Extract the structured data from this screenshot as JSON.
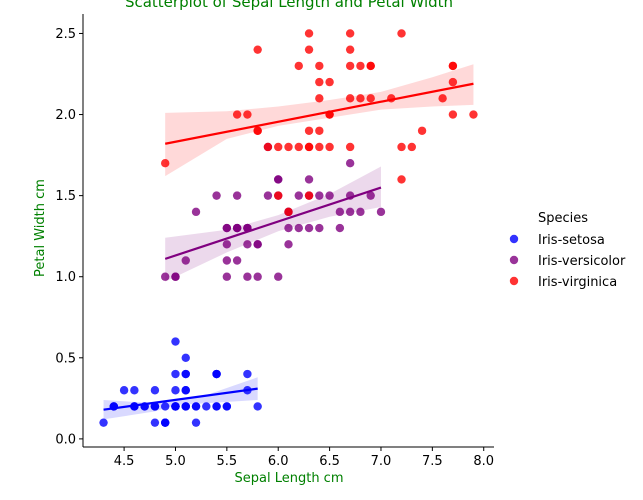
{
  "chart_data": {
    "type": "scatter",
    "title": "Scatterplot of Sepal Length and Petal Width",
    "xlabel": "Sepal Length cm",
    "ylabel": "Petal Width cm",
    "label_color": "#008000",
    "xlim": [
      4.1,
      8.1
    ],
    "ylim": [
      -0.05,
      2.62
    ],
    "xticks": [
      "4.5",
      "5.0",
      "5.5",
      "6.0",
      "6.5",
      "7.0",
      "7.5",
      "8.0"
    ],
    "yticks": [
      "0.0",
      "0.5",
      "1.0",
      "1.5",
      "2.0",
      "2.5"
    ],
    "grid": false,
    "legend_position": "right",
    "legend_title": "Species",
    "series": [
      {
        "name": "Iris-setosa",
        "color": "#0000ff",
        "regression": [
          [
            4.3,
            0.18
          ],
          [
            5.8,
            0.31
          ]
        ],
        "ci_upper": [
          [
            4.3,
            0.24
          ],
          [
            4.8,
            0.22
          ],
          [
            5.0,
            0.24
          ],
          [
            5.3,
            0.27
          ],
          [
            5.8,
            0.38
          ]
        ],
        "ci_lower": [
          [
            5.8,
            0.24
          ],
          [
            5.3,
            0.22
          ],
          [
            5.0,
            0.21
          ],
          [
            4.8,
            0.17
          ],
          [
            4.3,
            0.12
          ]
        ],
        "points": [
          [
            5.1,
            0.2
          ],
          [
            4.9,
            0.2
          ],
          [
            4.7,
            0.2
          ],
          [
            4.6,
            0.2
          ],
          [
            5.0,
            0.2
          ],
          [
            5.4,
            0.4
          ],
          [
            4.6,
            0.3
          ],
          [
            5.0,
            0.2
          ],
          [
            4.4,
            0.2
          ],
          [
            4.9,
            0.1
          ],
          [
            5.4,
            0.2
          ],
          [
            4.8,
            0.2
          ],
          [
            4.8,
            0.1
          ],
          [
            4.3,
            0.1
          ],
          [
            5.8,
            0.2
          ],
          [
            5.7,
            0.4
          ],
          [
            5.4,
            0.4
          ],
          [
            5.1,
            0.3
          ],
          [
            5.7,
            0.3
          ],
          [
            5.1,
            0.3
          ],
          [
            5.4,
            0.2
          ],
          [
            5.1,
            0.4
          ],
          [
            4.6,
            0.2
          ],
          [
            5.1,
            0.5
          ],
          [
            4.8,
            0.2
          ],
          [
            5.0,
            0.2
          ],
          [
            5.0,
            0.4
          ],
          [
            5.2,
            0.2
          ],
          [
            5.2,
            0.2
          ],
          [
            4.7,
            0.2
          ],
          [
            4.8,
            0.2
          ],
          [
            5.4,
            0.4
          ],
          [
            5.2,
            0.1
          ],
          [
            5.5,
            0.2
          ],
          [
            4.9,
            0.1
          ],
          [
            5.0,
            0.2
          ],
          [
            5.5,
            0.2
          ],
          [
            4.9,
            0.1
          ],
          [
            4.4,
            0.2
          ],
          [
            5.1,
            0.2
          ],
          [
            5.0,
            0.3
          ],
          [
            4.5,
            0.3
          ],
          [
            4.4,
            0.2
          ],
          [
            5.0,
            0.6
          ],
          [
            5.1,
            0.4
          ],
          [
            4.8,
            0.3
          ],
          [
            5.1,
            0.2
          ],
          [
            4.6,
            0.2
          ],
          [
            5.3,
            0.2
          ],
          [
            5.0,
            0.2
          ]
        ]
      },
      {
        "name": "Iris-versicolor",
        "color": "#800080",
        "regression": [
          [
            4.9,
            1.11
          ],
          [
            7.0,
            1.55
          ]
        ],
        "ci_upper": [
          [
            4.9,
            1.24
          ],
          [
            5.5,
            1.29
          ],
          [
            6.0,
            1.38
          ],
          [
            6.5,
            1.51
          ],
          [
            7.0,
            1.68
          ]
        ],
        "ci_lower": [
          [
            7.0,
            1.43
          ],
          [
            6.5,
            1.37
          ],
          [
            6.0,
            1.28
          ],
          [
            5.5,
            1.15
          ],
          [
            4.9,
            0.97
          ]
        ],
        "points": [
          [
            7.0,
            1.4
          ],
          [
            6.4,
            1.5
          ],
          [
            6.9,
            1.5
          ],
          [
            5.5,
            1.3
          ],
          [
            6.5,
            1.5
          ],
          [
            5.7,
            1.3
          ],
          [
            6.3,
            1.6
          ],
          [
            4.9,
            1.0
          ],
          [
            6.6,
            1.3
          ],
          [
            5.2,
            1.4
          ],
          [
            5.0,
            1.0
          ],
          [
            5.9,
            1.5
          ],
          [
            6.0,
            1.0
          ],
          [
            6.1,
            1.4
          ],
          [
            5.6,
            1.3
          ],
          [
            6.7,
            1.4
          ],
          [
            5.6,
            1.5
          ],
          [
            5.8,
            1.0
          ],
          [
            6.2,
            1.5
          ],
          [
            5.6,
            1.1
          ],
          [
            5.9,
            1.8
          ],
          [
            6.1,
            1.3
          ],
          [
            6.3,
            1.5
          ],
          [
            6.1,
            1.2
          ],
          [
            6.4,
            1.3
          ],
          [
            6.6,
            1.4
          ],
          [
            6.8,
            1.4
          ],
          [
            6.7,
            1.7
          ],
          [
            6.0,
            1.5
          ],
          [
            5.7,
            1.0
          ],
          [
            5.5,
            1.1
          ],
          [
            5.5,
            1.0
          ],
          [
            5.8,
            1.2
          ],
          [
            6.0,
            1.6
          ],
          [
            5.4,
            1.5
          ],
          [
            6.0,
            1.6
          ],
          [
            6.7,
            1.5
          ],
          [
            6.3,
            1.3
          ],
          [
            5.6,
            1.3
          ],
          [
            5.5,
            1.3
          ],
          [
            5.5,
            1.2
          ],
          [
            6.1,
            1.4
          ],
          [
            5.8,
            1.2
          ],
          [
            5.0,
            1.0
          ],
          [
            5.6,
            1.3
          ],
          [
            5.7,
            1.2
          ],
          [
            5.7,
            1.3
          ],
          [
            6.2,
            1.3
          ],
          [
            5.1,
            1.1
          ],
          [
            5.7,
            1.3
          ]
        ]
      },
      {
        "name": "Iris-virginica",
        "color": "#ff0000",
        "regression": [
          [
            4.9,
            1.82
          ],
          [
            7.9,
            2.19
          ]
        ],
        "ci_upper": [
          [
            4.9,
            2.01
          ],
          [
            5.5,
            2.02
          ],
          [
            6.0,
            2.05
          ],
          [
            6.5,
            2.09
          ],
          [
            7.0,
            2.14
          ],
          [
            7.5,
            2.23
          ],
          [
            7.9,
            2.31
          ]
        ],
        "ci_lower": [
          [
            7.9,
            2.06
          ],
          [
            7.5,
            2.05
          ],
          [
            7.0,
            2.03
          ],
          [
            6.5,
            1.98
          ],
          [
            6.0,
            1.93
          ],
          [
            5.5,
            1.85
          ],
          [
            4.9,
            1.62
          ]
        ],
        "points": [
          [
            6.3,
            2.5
          ],
          [
            5.8,
            1.9
          ],
          [
            7.1,
            2.1
          ],
          [
            6.3,
            1.8
          ],
          [
            6.5,
            2.2
          ],
          [
            7.6,
            2.1
          ],
          [
            4.9,
            1.7
          ],
          [
            7.3,
            1.8
          ],
          [
            6.7,
            1.8
          ],
          [
            7.2,
            2.5
          ],
          [
            6.5,
            2.0
          ],
          [
            6.4,
            1.9
          ],
          [
            6.8,
            2.1
          ],
          [
            5.7,
            2.0
          ],
          [
            5.8,
            2.4
          ],
          [
            6.4,
            2.3
          ],
          [
            6.5,
            1.8
          ],
          [
            7.7,
            2.2
          ],
          [
            7.7,
            2.3
          ],
          [
            6.0,
            1.5
          ],
          [
            6.9,
            2.3
          ],
          [
            5.6,
            2.0
          ],
          [
            7.7,
            2.0
          ],
          [
            6.3,
            1.8
          ],
          [
            6.7,
            2.1
          ],
          [
            7.2,
            1.8
          ],
          [
            6.2,
            1.8
          ],
          [
            6.1,
            1.8
          ],
          [
            6.4,
            2.1
          ],
          [
            7.2,
            1.6
          ],
          [
            7.4,
            1.9
          ],
          [
            7.9,
            2.0
          ],
          [
            6.4,
            2.2
          ],
          [
            6.3,
            1.5
          ],
          [
            6.1,
            1.4
          ],
          [
            7.7,
            2.3
          ],
          [
            6.3,
            2.4
          ],
          [
            6.4,
            1.8
          ],
          [
            6.0,
            1.8
          ],
          [
            6.9,
            2.1
          ],
          [
            6.7,
            2.4
          ],
          [
            6.9,
            2.3
          ],
          [
            5.8,
            1.9
          ],
          [
            6.8,
            2.3
          ],
          [
            6.7,
            2.5
          ],
          [
            6.7,
            2.3
          ],
          [
            6.3,
            1.9
          ],
          [
            6.5,
            2.0
          ],
          [
            6.2,
            2.3
          ],
          [
            5.9,
            1.8
          ]
        ]
      }
    ]
  }
}
